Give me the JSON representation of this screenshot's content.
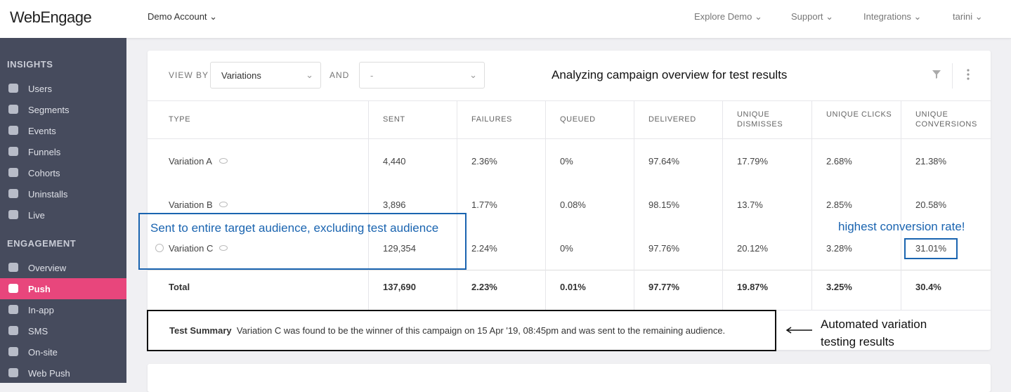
{
  "header": {
    "logo": "WebEngage",
    "account": "Demo Account",
    "menu": [
      "Explore Demo",
      "Support",
      "Integrations",
      "tarini"
    ]
  },
  "sidebar": {
    "sections": [
      {
        "title": "INSIGHTS",
        "items": [
          "Users",
          "Segments",
          "Events",
          "Funnels",
          "Cohorts",
          "Uninstalls",
          "Live"
        ]
      },
      {
        "title": "ENGAGEMENT",
        "items": [
          "Overview",
          "Push",
          "In-app",
          "SMS",
          "On-site",
          "Web Push"
        ]
      }
    ]
  },
  "toolbar": {
    "view_by": "VIEW BY",
    "view_by_value": "Variations",
    "and": "AND",
    "and_value": "-"
  },
  "table": {
    "columns": [
      "TYPE",
      "SENT",
      "FAILURES",
      "QUEUED",
      "DELIVERED",
      "UNIQUE DISMISSES",
      "UNIQUE CLICKS",
      "UNIQUE CONVERSIONS"
    ],
    "rows": [
      {
        "name": "Variation A",
        "values": [
          "4,440",
          "2.36%",
          "0%",
          "97.64%",
          "17.79%",
          "2.68%",
          "21.38%"
        ]
      },
      {
        "name": "Variation B",
        "values": [
          "3,896",
          "1.77%",
          "0.08%",
          "98.15%",
          "13.7%",
          "2.85%",
          "20.58%"
        ]
      },
      {
        "name": "Variation C",
        "values": [
          "129,354",
          "2.24%",
          "0%",
          "97.76%",
          "20.12%",
          "3.28%",
          "31.01%"
        ]
      }
    ],
    "total": {
      "name": "Total",
      "values": [
        "137,690",
        "2.23%",
        "0.01%",
        "97.77%",
        "19.87%",
        "3.25%",
        "30.4%"
      ]
    }
  },
  "summary": {
    "label": "Test Summary",
    "text": "Variation C was found to be the winner of this campaign on 15 Apr '19, 08:45pm and was sent to the remaining audience."
  },
  "annotations": {
    "title": "Analyzing campaign overview for test results",
    "audience": "Sent to entire target audience, excluding test audience",
    "conversion": "highest conversion rate!",
    "automated": "Automated variation testing results"
  }
}
